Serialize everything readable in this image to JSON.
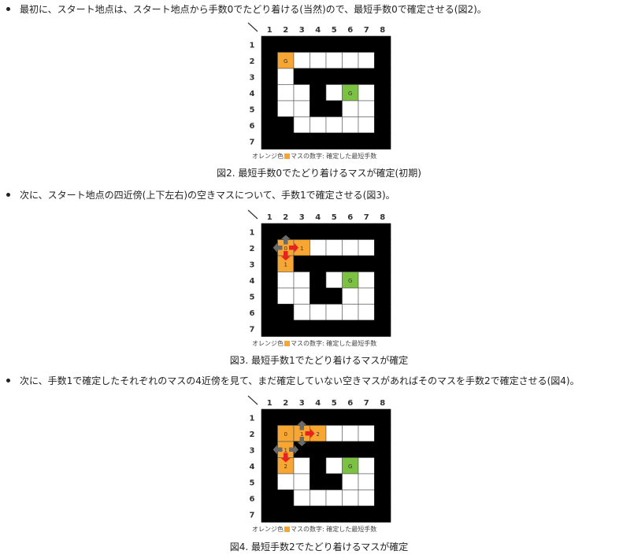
{
  "bullets": [
    "最初に、スタート地点は、スタート地点から手数0でたどり着ける(当然)ので、最短手数0で確定させる(図2)。",
    "次に、スタート地点の四近傍(上下左右)の空きマスについて、手数1で確定させる(図3)。",
    "次に、手数1で確定したそれぞれのマスの4近傍を見て、まだ確定していない空きマスがあればそのマスを手数2で確定させる(図4)。"
  ],
  "grid": {
    "col_labels": [
      "1",
      "2",
      "3",
      "4",
      "5",
      "6",
      "7",
      "8"
    ],
    "row_labels": [
      "1",
      "2",
      "3",
      "4",
      "5",
      "6",
      "7"
    ],
    "cells": [
      "########",
      "#......#",
      "#.######",
      "#..#.G.#",
      "#..##..#",
      "##.....#",
      "########"
    ],
    "start_letter": "G",
    "goal_letter": "G",
    "colors": {
      "wall": "#000000",
      "empty": "#ffffff",
      "orange": "#f7a731",
      "goal": "#7cc242",
      "arrow": "#e8231f",
      "grey": "#6b6b6b"
    }
  },
  "figures": [
    {
      "caption": "図2. 最短手数0でたどり着けるマスが確定(初期)",
      "note_prefix": "オレンジ色",
      "note_suffix": "マスの数字: 確定した最短手数",
      "orange": [
        [
          2,
          2,
          "0"
        ]
      ],
      "red_arrows": [],
      "grey_arrows": []
    },
    {
      "caption": "図3. 最短手数1でたどり着けるマスが確定",
      "note_prefix": "オレンジ色",
      "note_suffix": "マスの数字: 確定した最短手数",
      "orange": [
        [
          2,
          2,
          "0"
        ],
        [
          2,
          3,
          "1"
        ],
        [
          3,
          2,
          "1"
        ]
      ],
      "red_arrows": [
        [
          2,
          2,
          "right"
        ],
        [
          2,
          2,
          "down"
        ]
      ],
      "grey_arrows": [
        [
          2,
          2,
          "up"
        ],
        [
          2,
          2,
          "left"
        ]
      ]
    },
    {
      "caption": "図4. 最短手数2でたどり着けるマスが確定",
      "note_prefix": "オレンジ色",
      "note_suffix": "マスの数字: 確定した最短手数",
      "orange": [
        [
          2,
          2,
          "0"
        ],
        [
          2,
          3,
          "1"
        ],
        [
          2,
          4,
          "2"
        ],
        [
          3,
          2,
          "1"
        ],
        [
          4,
          2,
          "2"
        ]
      ],
      "red_arrows": [
        [
          2,
          3,
          "right"
        ],
        [
          3,
          2,
          "down"
        ]
      ],
      "grey_arrows": [
        [
          2,
          3,
          "up"
        ],
        [
          2,
          3,
          "down"
        ],
        [
          3,
          2,
          "left"
        ],
        [
          3,
          2,
          "right"
        ]
      ]
    }
  ]
}
